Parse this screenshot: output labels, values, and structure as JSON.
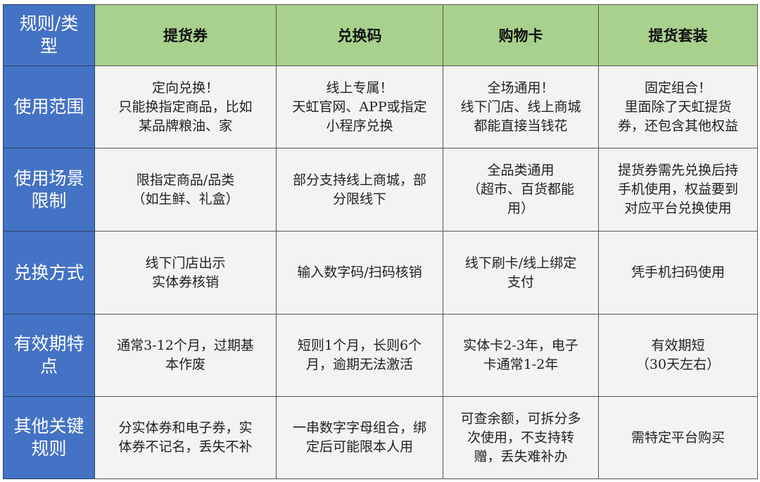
{
  "table": {
    "corner": [
      "规则/类",
      "型"
    ],
    "columns": [
      "提货券",
      "兑换码",
      "购物卡",
      "提货套装"
    ],
    "rows": [
      {
        "label": [
          "使用范围"
        ],
        "cells": [
          [
            "定向兑换！",
            "只能换指定商品，比如",
            "某品牌粮油、家"
          ],
          [
            "线上专属！",
            "天虹官网、APP或指定",
            "小程序兑换"
          ],
          [
            "全场通用！",
            "线下门店、线上商城",
            "都能直接当钱花"
          ],
          [
            "固定组合！",
            "里面除了天虹提货",
            "券，还包含其他权益"
          ]
        ]
      },
      {
        "label": [
          "使用场景",
          "限制"
        ],
        "cells": [
          [
            "限指定商品/品类",
            "（如生鲜、礼盒）"
          ],
          [
            "部分支持线上商城，部",
            "分限线下"
          ],
          [
            "全品类通用",
            "（超市、百货都能",
            "用）"
          ],
          [
            "提货券需先兑换后持",
            "手机使用，权益要到",
            "对应平台兑换使用"
          ]
        ]
      },
      {
        "label": [
          "兑换方式"
        ],
        "cells": [
          [
            "线下门店出示",
            "实体券核销"
          ],
          [
            "输入数字码/扫码核销"
          ],
          [
            "线下刷卡/线上绑定",
            "支付"
          ],
          [
            "凭手机扫码使用"
          ]
        ]
      },
      {
        "label": [
          "有效期特",
          "点"
        ],
        "cells": [
          [
            "通常3-12个月，过期基",
            "本作废"
          ],
          [
            "短则1个月，长则6个",
            "月，逾期无法激活"
          ],
          [
            "实体卡2-3年，电子",
            "卡通常1-2年"
          ],
          [
            "有效期短",
            "（30天左右）"
          ]
        ]
      },
      {
        "label": [
          "其他关键",
          "规则"
        ],
        "cells": [
          [
            "分实体券和电子券，实",
            "体券不记名，丢失不补"
          ],
          [
            "一串数字字母组合，绑",
            "定后可能限本人用"
          ],
          [
            "可查余额，可拆分多",
            "次使用，不支持转",
            "赠，丢失难补办"
          ],
          [
            "需特定平台购买"
          ]
        ]
      }
    ],
    "colors": {
      "header_row": "#a9d18e",
      "header_col": "#4472c4",
      "cell": "#f3f3f3"
    }
  }
}
